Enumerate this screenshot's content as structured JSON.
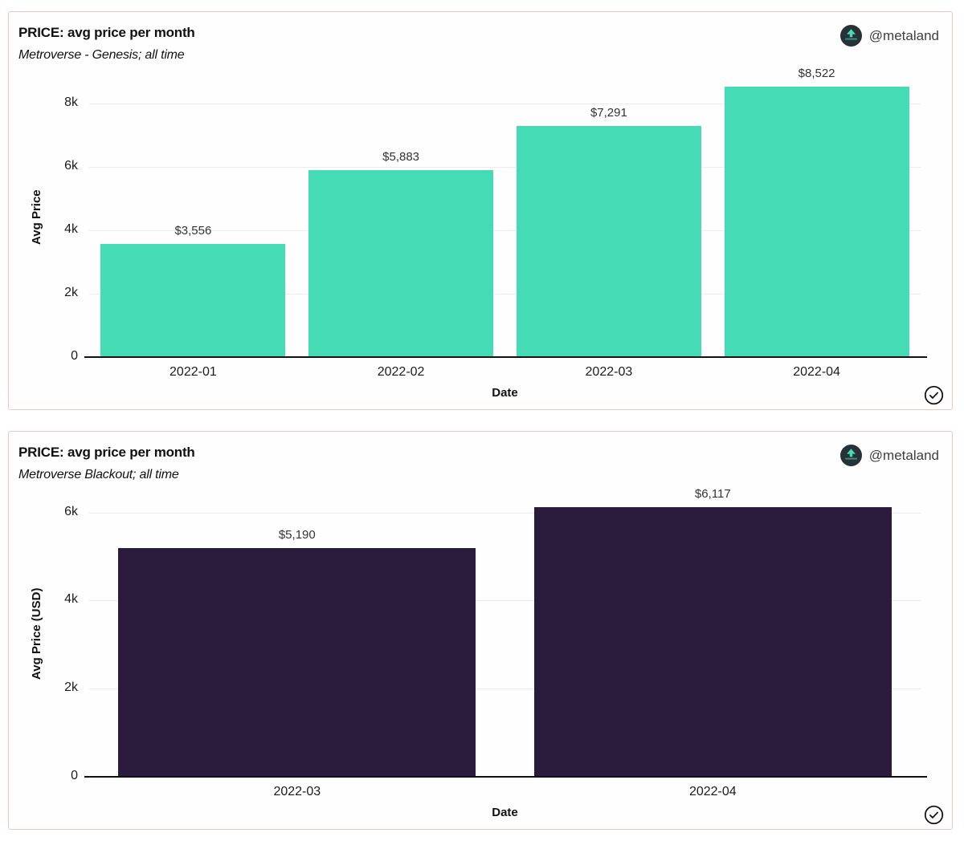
{
  "colors": {
    "panel_border": "#f2c4c4",
    "teal_bar": "#45dbb5",
    "dark_purple_bar": "#2a1a3b",
    "grid_line": "#ececec",
    "axis_line": "#111111",
    "author_text": "#3f3f3f",
    "logo_circle": "#263238"
  },
  "author": {
    "handle": "@metaland",
    "logo_icon": "up-arrow-circle-logo"
  },
  "footer_icon": "circled-checkmark",
  "chart_data": [
    {
      "type": "bar",
      "title": "PRICE: avg price per month",
      "subtitle": "Metroverse - Genesis; all time",
      "categories": [
        "2022-01",
        "2022-02",
        "2022-03",
        "2022-04"
      ],
      "values": [
        3556,
        5883,
        7291,
        8522
      ],
      "value_labels": [
        "$3,556",
        "$5,883",
        "$7,291",
        "$8,522"
      ],
      "xlabel": "Date",
      "ylabel": "Avg Price",
      "ylim": [
        0,
        8800
      ],
      "yticks": [
        {
          "value": 0,
          "label": "0"
        },
        {
          "value": 2000,
          "label": "2k"
        },
        {
          "value": 4000,
          "label": "4k"
        },
        {
          "value": 6000,
          "label": "6k"
        },
        {
          "value": 8000,
          "label": "8k"
        }
      ],
      "bar_color": "#45dbb5",
      "grid": true,
      "legend": false
    },
    {
      "type": "bar",
      "title": "PRICE: avg price per month",
      "subtitle": "Metroverse Blackout; all time",
      "categories": [
        "2022-03",
        "2022-04"
      ],
      "values": [
        5190,
        6117
      ],
      "value_labels": [
        "$5,190",
        "$6,117"
      ],
      "xlabel": "Date",
      "ylabel": "Avg Price (USD)",
      "ylim": [
        0,
        6500
      ],
      "yticks": [
        {
          "value": 0,
          "label": "0"
        },
        {
          "value": 2000,
          "label": "2k"
        },
        {
          "value": 4000,
          "label": "4k"
        },
        {
          "value": 6000,
          "label": "6k"
        }
      ],
      "bar_color": "#2a1a3b",
      "grid": true,
      "legend": false
    }
  ]
}
